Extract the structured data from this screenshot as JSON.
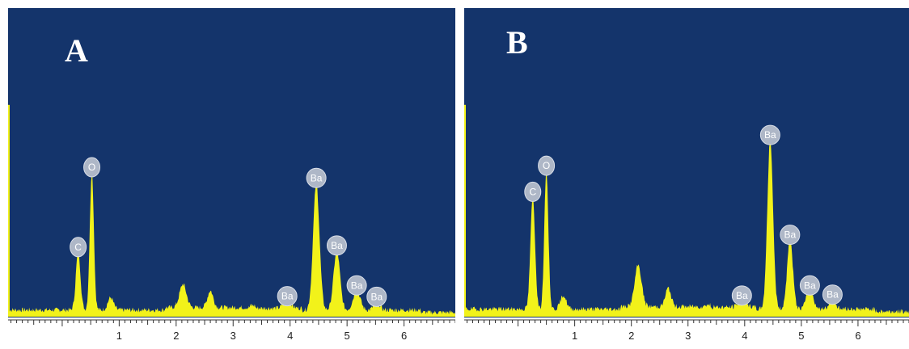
{
  "colors": {
    "background": "#14346b",
    "spectrum": "#f2f21a",
    "peak_label_fill": "#aeb7c7",
    "peak_label_text": "#ffffff",
    "panel_letter": "#ffffff",
    "axis": "#333333",
    "tick_text": "#222222"
  },
  "chart_data": [
    {
      "type": "area",
      "panel_label": "A",
      "title": "",
      "xlabel": "",
      "ylabel": "",
      "xlim": [
        -0.95,
        6.9
      ],
      "ylim": [
        0,
        100
      ],
      "grid": false,
      "x_tick_labels": [
        "1",
        "2",
        "3",
        "4",
        "5",
        "6"
      ],
      "x_ticks": [
        1,
        2,
        3,
        4,
        5,
        6
      ],
      "baseline": 2.2,
      "zero_peak_height": 100,
      "peaks": [
        {
          "element": "C",
          "x": 0.28,
          "height": 19.0,
          "width": 0.04
        },
        {
          "element": "O",
          "x": 0.52,
          "height": 45.0,
          "width": 0.035
        },
        {
          "element": "",
          "x": 0.85,
          "height": 4.0,
          "width": 0.05
        },
        {
          "element": "",
          "x": 2.12,
          "height": 7.6,
          "width": 0.06
        },
        {
          "element": "",
          "x": 2.6,
          "height": 5.5,
          "width": 0.05
        },
        {
          "element": "Ba",
          "x": 3.95,
          "height": 3.0,
          "width": 0.06
        },
        {
          "element": "Ba",
          "x": 4.46,
          "height": 41.5,
          "width": 0.055
        },
        {
          "element": "Ba",
          "x": 4.82,
          "height": 19.5,
          "width": 0.055
        },
        {
          "element": "Ba",
          "x": 5.17,
          "height": 6.5,
          "width": 0.06
        },
        {
          "element": "Ba",
          "x": 5.52,
          "height": 2.8,
          "width": 0.05
        }
      ]
    },
    {
      "type": "area",
      "panel_label": "B",
      "title": "",
      "xlabel": "",
      "ylabel": "",
      "xlim": [
        -0.95,
        6.9
      ],
      "ylim": [
        0,
        100
      ],
      "grid": false,
      "x_tick_labels": [
        "1",
        "2",
        "3",
        "4",
        "5",
        "6"
      ],
      "x_ticks": [
        1,
        2,
        3,
        4,
        5,
        6
      ],
      "baseline": 2.5,
      "zero_peak_height": 100,
      "peaks": [
        {
          "element": "C",
          "x": 0.26,
          "height": 37.0,
          "width": 0.04
        },
        {
          "element": "O",
          "x": 0.5,
          "height": 45.5,
          "width": 0.035
        },
        {
          "element": "",
          "x": 0.8,
          "height": 4.5,
          "width": 0.05
        },
        {
          "element": "",
          "x": 2.12,
          "height": 13.5,
          "width": 0.06
        },
        {
          "element": "",
          "x": 2.65,
          "height": 6.0,
          "width": 0.05
        },
        {
          "element": "Ba",
          "x": 3.95,
          "height": 3.2,
          "width": 0.06
        },
        {
          "element": "Ba",
          "x": 4.45,
          "height": 55.5,
          "width": 0.05
        },
        {
          "element": "Ba",
          "x": 4.8,
          "height": 23.0,
          "width": 0.05
        },
        {
          "element": "Ba",
          "x": 5.15,
          "height": 6.5,
          "width": 0.06
        },
        {
          "element": "Ba",
          "x": 5.55,
          "height": 3.5,
          "width": 0.05
        }
      ]
    }
  ]
}
